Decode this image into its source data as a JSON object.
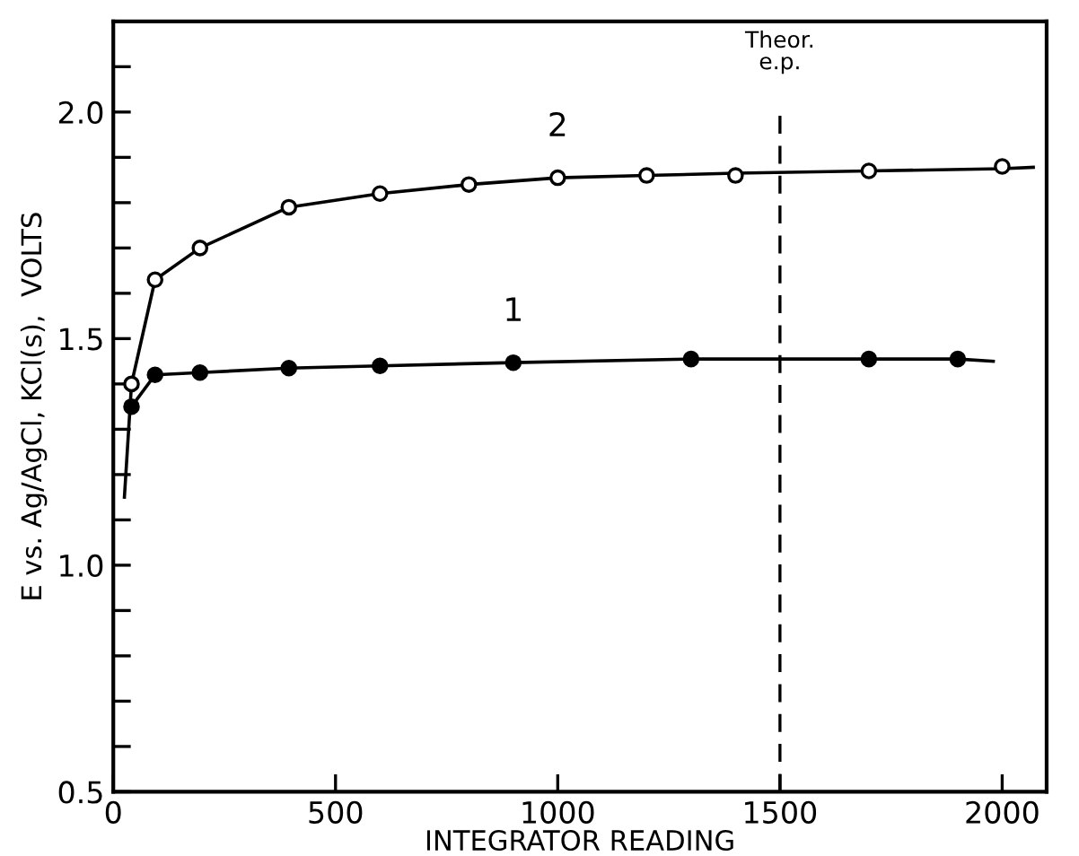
{
  "chart_data": {
    "type": "line",
    "xlabel": "INTEGRATOR READING",
    "ylabel": "E vs. Ag/AgCl, KCl(s),  VOLTS",
    "xlim": [
      0,
      2100
    ],
    "xticks": [
      0,
      500,
      1000,
      1500,
      2000
    ],
    "ylim": [
      0.5,
      2.2
    ],
    "yticks": [
      0.5,
      {
        "value": 0.6,
        "label": null
      },
      {
        "value": 0.7,
        "label": null
      },
      {
        "value": 0.8,
        "label": null
      },
      {
        "value": 0.9,
        "label": null
      },
      {
        "value": 1.0,
        "label": "1.0"
      },
      {
        "value": 1.1,
        "label": null
      },
      {
        "value": 1.2,
        "label": null
      },
      {
        "value": 1.3,
        "label": null
      },
      {
        "value": 1.4,
        "label": null
      },
      1.5,
      {
        "value": 1.6,
        "label": null
      },
      {
        "value": 1.7,
        "label": null
      },
      {
        "value": 1.8,
        "label": null
      },
      {
        "value": 1.9,
        "label": null
      },
      {
        "value": 2.0,
        "label": "2.0"
      },
      {
        "value": 2.1,
        "label": null
      }
    ],
    "grid": false,
    "legend": false,
    "series": [
      {
        "name": "2",
        "color": "#000000",
        "marker": "none",
        "x": [
          25,
          41,
          94,
          195,
          395,
          600,
          800,
          1000,
          1200,
          1400,
          1700,
          2000,
          2070
        ],
        "values": [
          1.15,
          1.4,
          1.63,
          1.7,
          1.79,
          1.82,
          1.84,
          1.855,
          1.86,
          1.865,
          1.87,
          1.875,
          1.878
        ]
      },
      {
        "type": "scatter",
        "color": "#ffffff",
        "marker": "circle",
        "x": [
          41,
          94,
          195,
          395,
          600,
          800,
          1000,
          1200,
          1400,
          1700,
          2000
        ],
        "values": [
          1.4,
          1.63,
          1.7,
          1.79,
          1.82,
          1.84,
          1.855,
          1.86,
          1.86,
          1.87,
          1.88
        ]
      },
      {
        "name": "1",
        "color": "#000000",
        "marker": "none",
        "x": [
          41,
          94,
          195,
          395,
          600,
          900,
          1300,
          1700,
          1900,
          1980
        ],
        "values": [
          1.35,
          1.42,
          1.425,
          1.435,
          1.44,
          1.447,
          1.455,
          1.455,
          1.455,
          1.45
        ]
      },
      {
        "type": "scatter",
        "color": "#000000",
        "marker": "circle",
        "x": [
          41,
          94,
          195,
          395,
          600,
          900,
          1300,
          1700,
          1900
        ],
        "values": [
          1.35,
          1.42,
          1.425,
          1.435,
          1.44,
          1.447,
          1.455,
          1.455,
          1.455
        ]
      }
    ],
    "ref_lines": [
      {
        "axis": "x",
        "value": 1500,
        "label": "Theor.\ne.p.",
        "line_style": "dashed",
        "color": "#000000"
      }
    ]
  }
}
